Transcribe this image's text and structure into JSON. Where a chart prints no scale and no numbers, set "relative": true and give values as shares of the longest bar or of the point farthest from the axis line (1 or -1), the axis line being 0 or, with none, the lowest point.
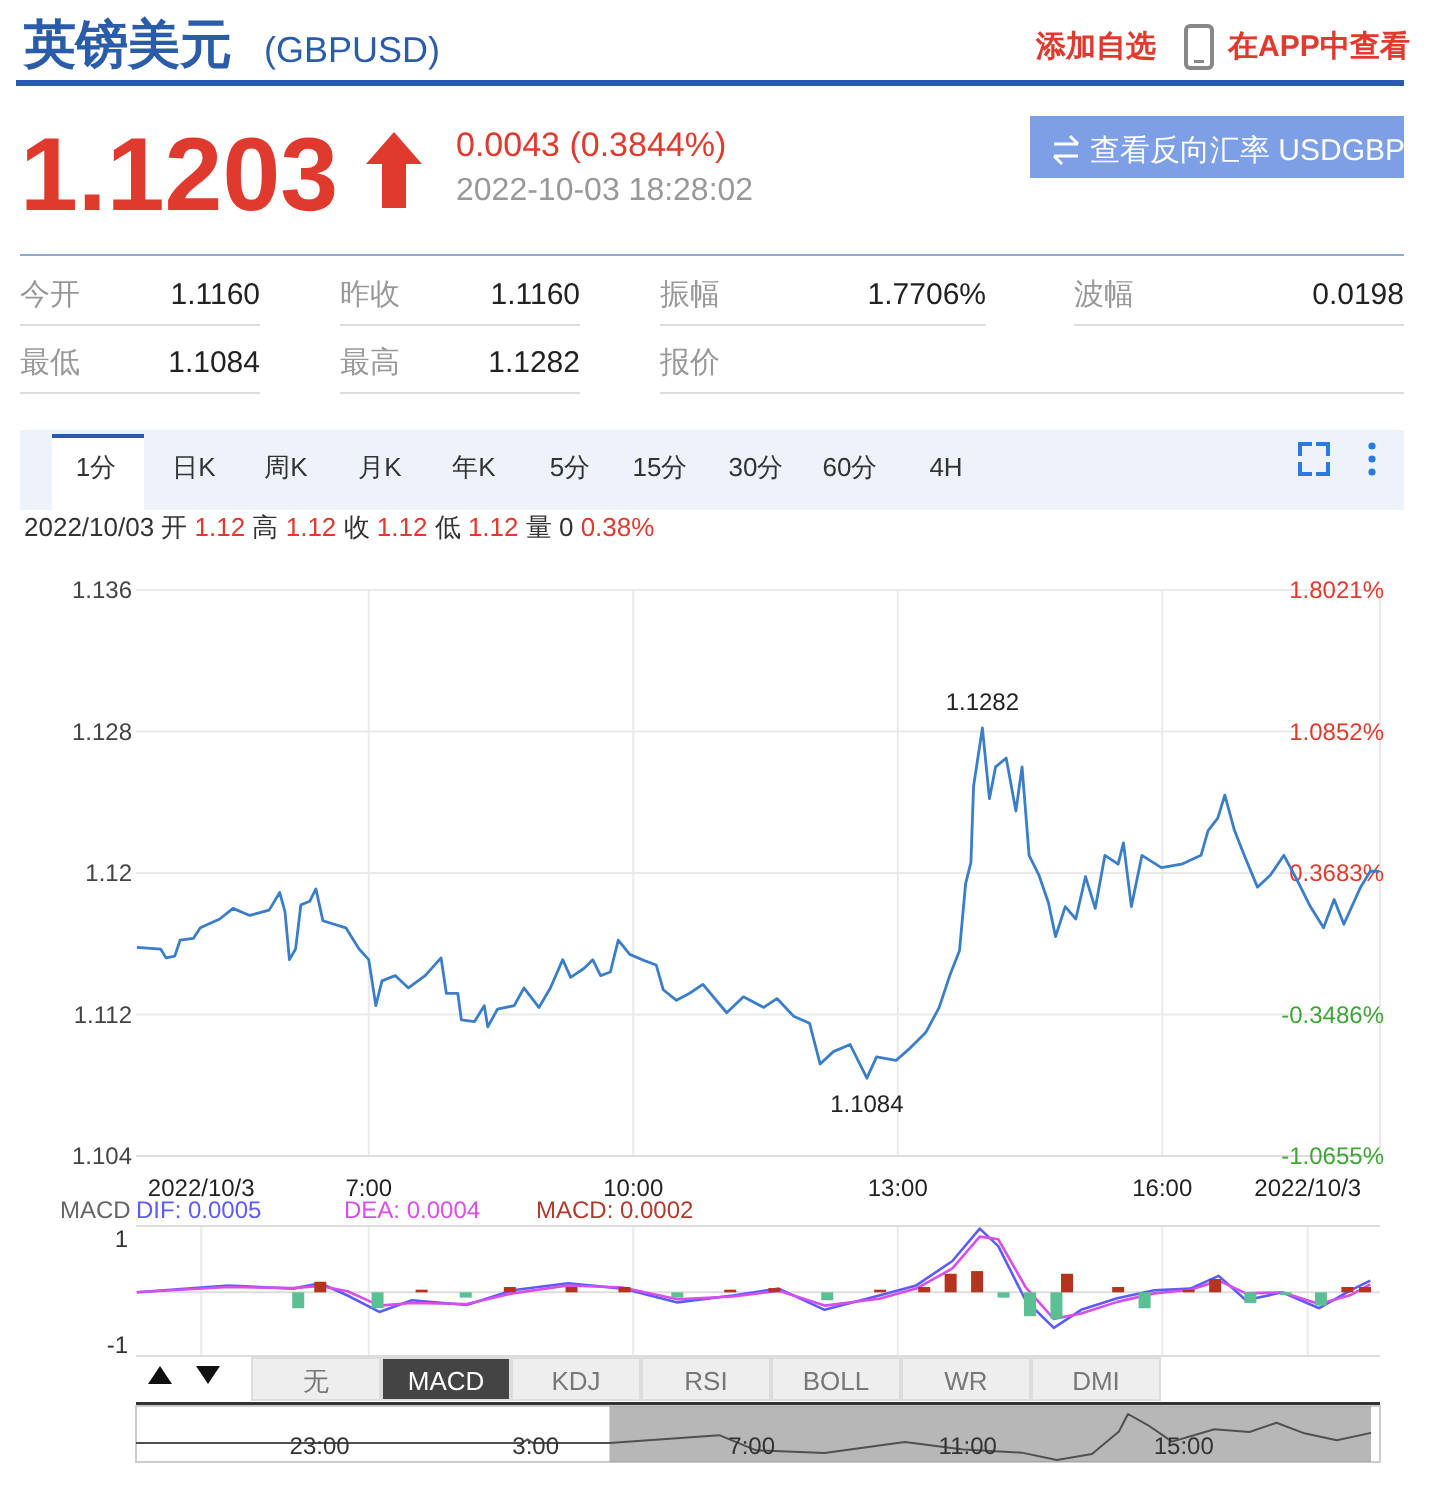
{
  "chart_data": [
    {
      "type": "other",
      "annotations": [
        "英镑美元",
        "(GBPUSD)",
        "添加自选",
        "在APP中查看",
        "1.1203",
        "0.0043 (0.3844%)",
        "2022-10-03 18:28:02",
        "查看反向汇率 USDGBP",
        "今开",
        "1.1160",
        "昨收",
        "1.1160",
        "振幅",
        "1.7706%",
        "波幅",
        "0.0198",
        "最低",
        "1.1084",
        "最高",
        "1.1282",
        "报价",
        "1分",
        "日K",
        "周K",
        "月K",
        "年K",
        "5分",
        "15分",
        "30分",
        "60分",
        "4H",
        "2022/10/03 开",
        "1.12",
        "高",
        "1.12",
        "收",
        "1.12",
        "低",
        "1.12",
        "量 0",
        "0.38%"
      ]
    },
    {
      "type": "line",
      "x": [
        4.37,
        4.64,
        4.7,
        4.8,
        4.86,
        5.01,
        5.09,
        5.31,
        5.46,
        5.65,
        5.87,
        5.99,
        6.05,
        6.1,
        6.17,
        6.23,
        6.33,
        6.4,
        6.48,
        6.74,
        6.89,
        7.0,
        7.08,
        7.15,
        7.3,
        7.45,
        7.64,
        7.82,
        7.88,
        8.01,
        8.05,
        8.2,
        8.31,
        8.35,
        8.46,
        8.65,
        8.76,
        8.93,
        9.06,
        9.2,
        9.29,
        9.44,
        9.54,
        9.63,
        9.74,
        9.83,
        9.96,
        10.15,
        10.26,
        10.34,
        10.49,
        10.64,
        10.79,
        11.06,
        11.25,
        11.48,
        11.63,
        11.82,
        12.0,
        12.12,
        12.27,
        12.46,
        12.65,
        12.76,
        12.98,
        13.14,
        13.32,
        13.47,
        13.59,
        13.7,
        13.77,
        13.83,
        13.86,
        13.96,
        14.04,
        14.11,
        14.23,
        14.34,
        14.41,
        14.49,
        14.6,
        14.71,
        14.79,
        14.9,
        15.02,
        15.13,
        15.24,
        15.35,
        15.5,
        15.56,
        15.65,
        15.77,
        15.99,
        16.22,
        16.44,
        16.52,
        16.63,
        16.71,
        16.82,
        16.93,
        17.08,
        17.23,
        17.38,
        17.53,
        17.68,
        17.83,
        17.95,
        18.06,
        18.25,
        18.36,
        18.46
      ],
      "series": [
        {
          "color": "#3a7dc9",
          "values": [
            1.1158,
            1.1157,
            1.1152,
            1.1153,
            1.1162,
            1.1163,
            1.1169,
            1.1174,
            1.118,
            1.1176,
            1.1179,
            1.1189,
            1.1178,
            1.1151,
            1.1157,
            1.1182,
            1.1184,
            1.1191,
            1.1173,
            1.1169,
            1.1157,
            1.1151,
            1.1125,
            1.1139,
            1.1142,
            1.1135,
            1.1142,
            1.1152,
            1.1132,
            1.1132,
            1.1117,
            1.1116,
            1.1125,
            1.1113,
            1.1123,
            1.1125,
            1.1135,
            1.1124,
            1.1135,
            1.1151,
            1.1141,
            1.1146,
            1.1151,
            1.1142,
            1.1144,
            1.1162,
            1.1154,
            1.115,
            1.1148,
            1.1134,
            1.1128,
            1.1132,
            1.1137,
            1.1121,
            1.113,
            1.1124,
            1.1129,
            1.1119,
            1.1115,
            1.1092,
            1.1099,
            1.1103,
            1.1084,
            1.1096,
            1.1094,
            1.1101,
            1.111,
            1.1124,
            1.1142,
            1.1156,
            1.1194,
            1.1206,
            1.1249,
            1.1282,
            1.1242,
            1.126,
            1.1265,
            1.1235,
            1.126,
            1.121,
            1.1199,
            1.1183,
            1.1164,
            1.1181,
            1.1174,
            1.1198,
            1.118,
            1.121,
            1.1205,
            1.1217,
            1.1181,
            1.121,
            1.1203,
            1.1205,
            1.121,
            1.1224,
            1.1231,
            1.1244,
            1.1224,
            1.121,
            1.1192,
            1.1199,
            1.121,
            1.1196,
            1.1181,
            1.1169,
            1.1185,
            1.1171,
            1.1192,
            1.1201,
            1.1201
          ]
        }
      ],
      "xlim": [
        4.36,
        18.47
      ],
      "ylim": [
        1.104,
        1.136
      ],
      "xticks": [
        {
          "value": 7,
          "label": null
        },
        {
          "value": 10,
          "label": null
        },
        {
          "value": 13,
          "label": null
        },
        {
          "value": 16,
          "label": null
        }
      ],
      "yticks": [
        1.104,
        1.112,
        1.12,
        1.128,
        1.136
      ],
      "y2lim": [
        -1.0655,
        1.8021
      ],
      "y2ticks": [
        {
          "value": -1.0655,
          "label": "-1.0655%"
        },
        {
          "value": -0.3486,
          "label": "-0.3486%"
        },
        {
          "value": 0.3683,
          "label": "0.3683%"
        },
        {
          "value": 1.0852,
          "label": "1.0852%"
        },
        {
          "value": 1.8021,
          "label": "1.8021%"
        }
      ],
      "grid": true,
      "tick_labels": "y",
      "annotations": [
        {
          "text": "1.1282",
          "x": 13.96,
          "y": 1.1282
        },
        {
          "text": "1.1084",
          "x": 12.65,
          "y": 1.1084
        }
      ]
    },
    {
      "type": "line",
      "title": "MACD",
      "x": [
        4.37,
        5.41,
        6.14,
        6.45,
        6.76,
        7.12,
        7.49,
        8.11,
        8.63,
        9.26,
        9.88,
        10.5,
        11.13,
        11.65,
        12.17,
        12.79,
        13.21,
        13.62,
        13.93,
        14.14,
        14.45,
        14.77,
        15.08,
        15.49,
        15.91,
        16.32,
        16.64,
        16.95,
        17.36,
        17.78,
        18.14,
        18.36
      ],
      "series": [
        {
          "name": "DIF: 0.0005",
          "color": "#5b5bff",
          "values": [
            0,
            0.13,
            0.07,
            0.17,
            -0.06,
            -0.37,
            -0.15,
            -0.24,
            0.04,
            0.17,
            0.07,
            -0.19,
            -0.06,
            0.07,
            -0.33,
            -0.06,
            0.13,
            0.59,
            1.2,
            0.87,
            -0.15,
            -0.67,
            -0.33,
            -0.11,
            0.04,
            0.07,
            0.31,
            -0.15,
            0,
            -0.3,
            0.04,
            0.22
          ]
        },
        {
          "name": "DEA: 0.0004",
          "color": "#d84ee8",
          "values": [
            0,
            0.1,
            0.08,
            0.12,
            0.02,
            -0.25,
            -0.2,
            -0.22,
            -0.02,
            0.13,
            0.09,
            -0.13,
            -0.08,
            0.03,
            -0.25,
            -0.12,
            0.07,
            0.45,
            1.05,
            1.0,
            0.1,
            -0.5,
            -0.4,
            -0.18,
            -0.02,
            0.05,
            0.22,
            -0.02,
            0,
            -0.22,
            -0.05,
            0.15
          ]
        },
        {
          "type": "bar",
          "name": "MACD: 0.0002",
          "color": "#b03a2e",
          "x": [
            6.2,
            6.45,
            7.1,
            7.6,
            8.1,
            8.6,
            9.3,
            9.9,
            10.5,
            11.1,
            11.6,
            12.2,
            12.8,
            13.3,
            13.6,
            13.9,
            14.2,
            14.5,
            14.8,
            14.92,
            15.5,
            15.8,
            16.3,
            16.6,
            17.0,
            17.4,
            17.8,
            18.1,
            18.3
          ],
          "values": [
            -0.3,
            0.2,
            -0.3,
            0.05,
            -0.1,
            0.1,
            0.1,
            0.1,
            -0.1,
            0.05,
            0.08,
            -0.15,
            0.05,
            0.1,
            0.35,
            0.4,
            -0.1,
            -0.45,
            -0.5,
            0.35,
            0.1,
            -0.3,
            0.05,
            0.25,
            -0.2,
            -0.05,
            -0.25,
            0.1,
            0.1
          ],
          "colors": [
            "#5bbf94",
            "#b5341f",
            "#5bbf94",
            "#b5341f",
            "#5bbf94",
            "#b5341f",
            "#b5341f",
            "#b5341f",
            "#5bbf94",
            "#b5341f",
            "#b5341f",
            "#5bbf94",
            "#b5341f",
            "#b5341f",
            "#b5341f",
            "#b5341f",
            "#5bbf94",
            "#5bbf94",
            "#5bbf94",
            "#b5341f",
            "#b5341f",
            "#5bbf94",
            "#b5341f",
            "#b5341f",
            "#5bbf94",
            "#5bbf94",
            "#5bbf94",
            "#b5341f",
            "#b5341f"
          ]
        }
      ],
      "xlim": [
        4.36,
        18.47
      ],
      "ylim": [
        -1.2,
        1.25
      ],
      "yticks": [
        -1,
        1
      ],
      "xticks": [
        {
          "value": 5.1,
          "label": "2022/10/3"
        },
        {
          "value": 7,
          "label": "7:00"
        },
        {
          "value": 10,
          "label": "10:00"
        },
        {
          "value": 13,
          "label": "13:00"
        },
        {
          "value": 16,
          "label": "16:00"
        },
        {
          "value": 17.65,
          "label": "2022/10/3"
        }
      ],
      "grid": "x"
    },
    {
      "type": "other",
      "annotations": [
        "无",
        "MACD",
        "KDJ",
        "RSI",
        "BOLL",
        "WR",
        "DMI"
      ]
    },
    {
      "type": "line",
      "relative": true,
      "tick_labels": "x",
      "x": [
        "2022-10-02T19:36",
        "2022-10-03T02:45",
        "2022-10-03T02:51",
        "2022-10-03T02:57",
        "2022-10-03T04:22",
        "2022-10-03T06:24",
        "2022-10-03T07:05",
        "2022-10-03T08:21",
        "2022-10-03T09:50",
        "2022-10-03T10:55",
        "2022-10-03T12:00",
        "2022-10-03T12:39",
        "2022-10-03T13:18",
        "2022-10-03T13:48",
        "2022-10-03T13:58",
        "2022-10-03T14:20",
        "2022-10-03T14:47",
        "2022-10-03T15:34",
        "2022-10-03T16:13",
        "2022-10-03T16:43",
        "2022-10-03T17:14",
        "2022-10-03T17:50",
        "2022-10-03T18:28"
      ],
      "series": [
        {
          "color": "#505050",
          "values": [
            0.37,
            0.37,
            0.45,
            0.37,
            0.37,
            0.54,
            0.21,
            0.15,
            0.39,
            0.23,
            0.16,
            0,
            0.13,
            0.62,
            1,
            0.76,
            0.4,
            0.67,
            0.61,
            0.81,
            0.58,
            0.43,
            0.59
          ]
        }
      ],
      "xlim": [
        "2022-10-02T19:36",
        "2022-10-03T18:38"
      ],
      "xticks": [
        {
          "value": "2022-10-02T23:00",
          "label": "23:00"
        },
        {
          "value": "2022-10-03T03:00",
          "label": "3:00"
        },
        {
          "value": "2022-10-03T07:00",
          "label": "7:00"
        },
        {
          "value": "2022-10-03T11:00",
          "label": "11:00"
        },
        {
          "value": "2022-10-03T15:00",
          "label": "15:00"
        }
      ],
      "bands": [
        {
          "axis": "x",
          "from": "2022-10-03T04:22",
          "to": "2022-10-03T18:28",
          "color": "#999999"
        }
      ]
    }
  ]
}
